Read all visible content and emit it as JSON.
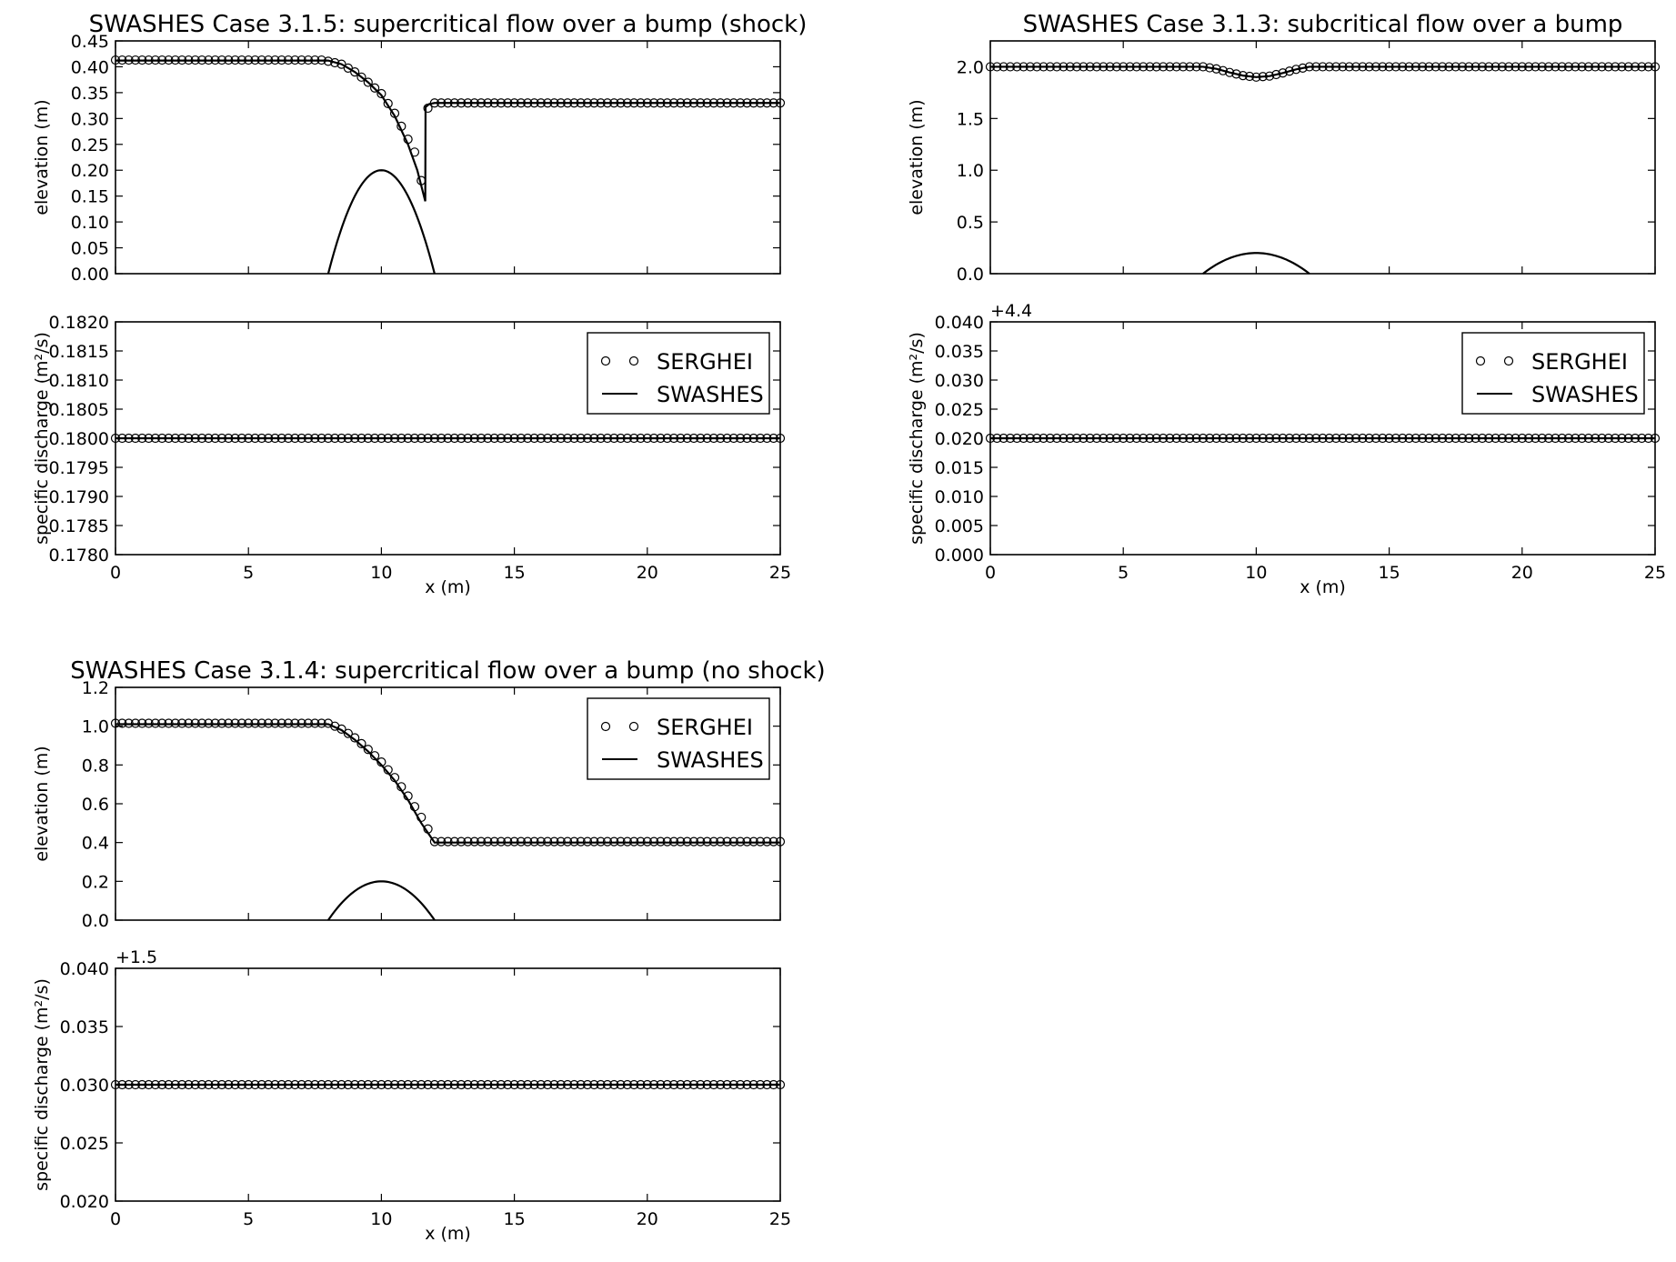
{
  "chart_data": [
    {
      "type": "line",
      "title": "SWASHES Case 3.1.5: supercritical flow over a bump (shock)",
      "xlabel": "",
      "ylabel": "elevation (m)",
      "xlim": [
        0,
        25
      ],
      "ylim": [
        0,
        0.45
      ],
      "xticks": [
        0,
        5,
        10,
        15,
        20,
        25
      ],
      "xtick_labels": [],
      "yticks": [
        0,
        0.05,
        0.1,
        0.15,
        0.2,
        0.25,
        0.3,
        0.35,
        0.4,
        0.45
      ],
      "ytick_labels": [
        "0.00",
        "0.05",
        "0.10",
        "0.15",
        "0.20",
        "0.25",
        "0.30",
        "0.35",
        "0.40",
        "0.45"
      ],
      "y_offset_text": "",
      "grid": false,
      "bump": {
        "center": 10,
        "height": 0.2,
        "halfwidth": 2
      },
      "swashes": {
        "x": [
          0,
          8,
          8.5,
          9,
          9.5,
          10,
          10.5,
          11,
          11.35,
          11.65,
          11.66,
          11.8,
          12,
          25
        ],
        "y": [
          0.412,
          0.412,
          0.405,
          0.39,
          0.37,
          0.345,
          0.305,
          0.25,
          0.2,
          0.14,
          0.322,
          0.328,
          0.33,
          0.33
        ]
      },
      "serghei": {
        "x_start": 0,
        "x_end": 25,
        "n": 101,
        "profile_x": [
          0,
          7.8,
          8.5,
          9,
          9.5,
          10,
          10.5,
          11,
          11.25,
          11.5,
          11.6,
          11.75,
          12,
          25
        ],
        "profile_y": [
          0.413,
          0.413,
          0.405,
          0.39,
          0.37,
          0.348,
          0.31,
          0.26,
          0.235,
          0.18,
          0.15,
          0.32,
          0.33,
          0.33
        ]
      },
      "legend": null
    },
    {
      "type": "line",
      "title": "",
      "xlabel": "x (m)",
      "ylabel": "specific discharge (m²/s)",
      "xlim": [
        0,
        25
      ],
      "ylim": [
        0.178,
        0.182
      ],
      "xticks": [
        0,
        5,
        10,
        15,
        20,
        25
      ],
      "xtick_labels": [
        "0",
        "5",
        "10",
        "15",
        "20",
        "25"
      ],
      "yticks": [
        0.178,
        0.1785,
        0.179,
        0.1795,
        0.18,
        0.1805,
        0.181,
        0.1815,
        0.182
      ],
      "ytick_labels": [
        "0.1780",
        "0.1785",
        "0.1790",
        "0.1795",
        "0.1800",
        "0.1805",
        "0.1810",
        "0.1815",
        "0.1820"
      ],
      "y_offset_text": "",
      "grid": false,
      "swashes": {
        "x": [
          0,
          25
        ],
        "y": [
          0.18,
          0.18
        ]
      },
      "serghei": {
        "x_start": 0,
        "x_end": 25,
        "n": 101,
        "profile_x": [
          0,
          25
        ],
        "profile_y": [
          0.18,
          0.18
        ]
      },
      "legend": {
        "placement": "top-right",
        "entries": [
          "SERGHEI",
          "SWASHES"
        ]
      }
    },
    {
      "type": "line",
      "title": "SWASHES Case 3.1.3: subcritical flow over a bump",
      "xlabel": "",
      "ylabel": "elevation (m)",
      "xlim": [
        0,
        25
      ],
      "ylim": [
        0,
        2.25
      ],
      "xticks": [
        0,
        5,
        10,
        15,
        20,
        25
      ],
      "xtick_labels": [],
      "yticks": [
        0,
        0.5,
        1.0,
        1.5,
        2.0
      ],
      "ytick_labels": [
        "0.0",
        "0.5",
        "1.0",
        "1.5",
        "2.0"
      ],
      "y_offset_text": "",
      "grid": false,
      "bump": {
        "center": 10,
        "height": 0.2,
        "halfwidth": 2
      },
      "swashes": {
        "x": [
          0,
          8,
          8.5,
          9,
          9.5,
          10,
          10.5,
          11,
          11.5,
          12,
          25
        ],
        "y": [
          2.0,
          2.0,
          1.98,
          1.945,
          1.915,
          1.9,
          1.91,
          1.94,
          1.975,
          2.0,
          2.0
        ]
      },
      "serghei": {
        "x_start": 0,
        "x_end": 25,
        "n": 101,
        "profile_x": [
          0,
          8,
          8.5,
          9,
          9.5,
          10,
          10.5,
          11,
          11.5,
          12,
          25
        ],
        "profile_y": [
          2.0,
          2.0,
          1.98,
          1.945,
          1.915,
          1.9,
          1.91,
          1.94,
          1.975,
          2.0,
          2.0
        ]
      },
      "legend": null
    },
    {
      "type": "line",
      "title": "",
      "xlabel": "x (m)",
      "ylabel": "specific discharge (m²/s)",
      "xlim": [
        0,
        25
      ],
      "ylim": [
        0,
        0.04
      ],
      "xticks": [
        0,
        5,
        10,
        15,
        20,
        25
      ],
      "xtick_labels": [
        "0",
        "5",
        "10",
        "15",
        "20",
        "25"
      ],
      "yticks": [
        0,
        0.005,
        0.01,
        0.015,
        0.02,
        0.025,
        0.03,
        0.035,
        0.04
      ],
      "ytick_labels": [
        "0.000",
        "0.005",
        "0.010",
        "0.015",
        "0.020",
        "0.025",
        "0.030",
        "0.035",
        "0.040"
      ],
      "y_offset_text": "+4.4",
      "grid": false,
      "swashes": {
        "x": [
          0,
          25
        ],
        "y": [
          0.02,
          0.02
        ]
      },
      "serghei": {
        "x_start": 0,
        "x_end": 25,
        "n": 101,
        "profile_x": [
          0,
          25
        ],
        "profile_y": [
          0.02,
          0.02
        ]
      },
      "legend": {
        "placement": "top-right",
        "entries": [
          "SERGHEI",
          "SWASHES"
        ]
      }
    },
    {
      "type": "line",
      "title": "SWASHES Case 3.1.4: supercritical flow over a bump (no shock)",
      "xlabel": "",
      "ylabel": "elevation (m)",
      "xlim": [
        0,
        25
      ],
      "ylim": [
        0,
        1.2
      ],
      "xticks": [
        0,
        5,
        10,
        15,
        20,
        25
      ],
      "xtick_labels": [],
      "yticks": [
        0,
        0.2,
        0.4,
        0.6,
        0.8,
        1.0,
        1.2
      ],
      "ytick_labels": [
        "0.0",
        "0.2",
        "0.4",
        "0.6",
        "0.8",
        "1.0",
        "1.2"
      ],
      "y_offset_text": "",
      "grid": false,
      "bump": {
        "center": 10,
        "height": 0.2,
        "halfwidth": 2
      },
      "swashes": {
        "x": [
          0,
          8,
          8.5,
          9,
          9.5,
          10,
          10.5,
          11,
          11.5,
          12,
          25
        ],
        "y": [
          1.01,
          1.01,
          0.98,
          0.93,
          0.87,
          0.8,
          0.72,
          0.62,
          0.5,
          0.4,
          0.4
        ]
      },
      "serghei": {
        "x_start": 0,
        "x_end": 25,
        "n": 101,
        "profile_x": [
          0,
          8,
          8.5,
          9,
          9.5,
          10,
          10.5,
          11,
          11.5,
          11.75,
          12,
          25
        ],
        "profile_y": [
          1.015,
          1.015,
          0.985,
          0.94,
          0.88,
          0.815,
          0.735,
          0.64,
          0.53,
          0.47,
          0.405,
          0.405
        ]
      },
      "legend": {
        "placement": "top-right",
        "entries": [
          "SERGHEI",
          "SWASHES"
        ]
      }
    },
    {
      "type": "line",
      "title": "",
      "xlabel": "x (m)",
      "ylabel": "specific discharge (m²/s)",
      "xlim": [
        0,
        25
      ],
      "ylim": [
        0.02,
        0.04
      ],
      "xticks": [
        0,
        5,
        10,
        15,
        20,
        25
      ],
      "xtick_labels": [
        "0",
        "5",
        "10",
        "15",
        "20",
        "25"
      ],
      "yticks": [
        0.02,
        0.025,
        0.03,
        0.035,
        0.04
      ],
      "ytick_labels": [
        "0.020",
        "0.025",
        "0.030",
        "0.035",
        "0.040"
      ],
      "y_offset_text": "+1.5",
      "grid": false,
      "swashes": {
        "x": [
          0,
          25
        ],
        "y": [
          0.03,
          0.03
        ]
      },
      "serghei": {
        "x_start": 0,
        "x_end": 25,
        "n": 101,
        "profile_x": [
          0,
          25
        ],
        "profile_y": [
          0.03,
          0.03
        ]
      },
      "legend": null
    }
  ]
}
